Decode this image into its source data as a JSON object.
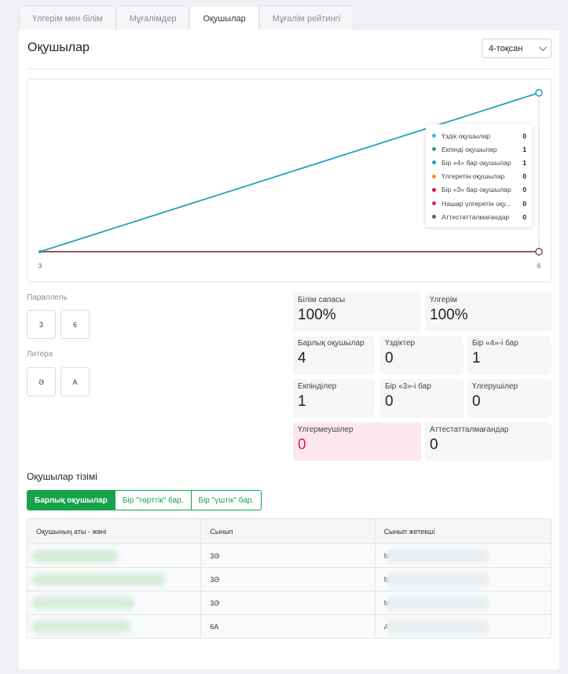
{
  "tabs": [
    "Үлгерім мен білім",
    "Мұғалімдер",
    "Оқушылар",
    "Мұғалім рейтингі"
  ],
  "active_tab": 2,
  "page": {
    "title": "Оқушылар",
    "quarter_select": "4-тоқсан"
  },
  "chart_data": {
    "type": "line",
    "x": [
      "3",
      "6"
    ],
    "series": [
      {
        "name": "Үздік оқушылар",
        "color": "#2ec4d6",
        "values": [
          0,
          0
        ]
      },
      {
        "name": "Екпінді оқушылар",
        "color": "#3aa757",
        "values": [
          0,
          1
        ]
      },
      {
        "name": "Бір «4» бар оқушылар",
        "color": "#1da1c8",
        "values": [
          0,
          1
        ]
      },
      {
        "name": "Үлгеретін оқушылар",
        "color": "#f28c28",
        "values": [
          0,
          0
        ]
      },
      {
        "name": "Бір «3» бар оқушылар",
        "color": "#c2185b",
        "values": [
          0,
          0
        ]
      },
      {
        "name": "Нашар үлгеретін оқушылар",
        "color": "#e91e8c",
        "values": [
          0,
          0
        ]
      },
      {
        "name": "Аттестатталмағандар",
        "color": "#7b5c55",
        "values": [
          0,
          0
        ]
      }
    ],
    "ylim": [
      0,
      1
    ],
    "legend": {
      "placement": "top-right",
      "labels": [
        "Үздік оқушылар",
        "Екпінді оқушылар",
        "Бір «4» бар оқушылар",
        "Үлгеретін оқушылар",
        "Бір «3» бар оқушылар",
        "Нашар үлгеретін оқу...",
        "Аттестатталмағандар"
      ],
      "values": [
        "0",
        "1",
        "1",
        "0",
        "0",
        "0",
        "0"
      ]
    }
  },
  "filters": {
    "parallel_label": "Параллель",
    "parallel_options": [
      "3",
      "6"
    ],
    "litera_label": "Литера",
    "litera_options": [
      "Ә",
      "А"
    ]
  },
  "stats": {
    "quality": {
      "label": "Білім сапасы",
      "value": "100%"
    },
    "progress": {
      "label": "Үлгерім",
      "value": "100%"
    },
    "total": {
      "label": "Барлық оқушылар",
      "value": "4"
    },
    "excellent": {
      "label": "Үздіктер",
      "value": "0"
    },
    "one_four": {
      "label": "Бір «4»-і бар",
      "value": "1"
    },
    "good": {
      "label": "Екпінділер",
      "value": "1"
    },
    "one_three": {
      "label": "Бір «3»-і бар",
      "value": "0"
    },
    "passing": {
      "label": "Үлгерушілер",
      "value": "0"
    },
    "failing": {
      "label": "Үлгермеушілер",
      "value": "0"
    },
    "unattested": {
      "label": "Аттестатталмағандар",
      "value": "0"
    }
  },
  "list": {
    "title": "Оқушылар тізімі",
    "filters": [
      "Барлық оқушылар",
      "Бір \"төрттік\" бар.",
      "Бір \"үштік\" бар."
    ],
    "headers": [
      "Оқушының аты - жөні",
      "Сынып",
      "Сынып жетекші"
    ],
    "rows": [
      {
        "class": "3Ә",
        "teacher_initial": "М"
      },
      {
        "class": "3Ә",
        "teacher_initial": "М"
      },
      {
        "class": "3Ә",
        "teacher_initial": "М"
      },
      {
        "class": "6А",
        "teacher_initial": "А"
      }
    ]
  }
}
